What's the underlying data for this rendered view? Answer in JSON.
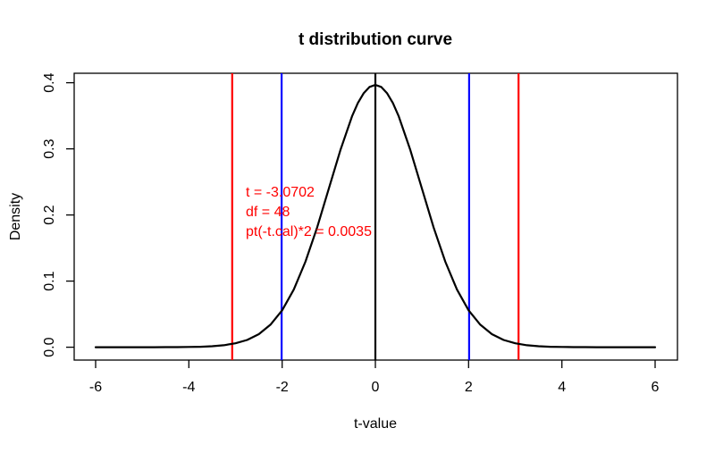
{
  "chart_data": {
    "type": "line",
    "title": "t distribution curve",
    "xlabel": "t-value",
    "ylabel": "Density",
    "xlim": [
      -6.48,
      6.48
    ],
    "ylim": [
      -0.016,
      0.413
    ],
    "grid": false,
    "legend": "none",
    "x_ticks": [
      -6,
      -4,
      -2,
      0,
      2,
      4,
      6
    ],
    "x_tick_labels": [
      "-6",
      "-4",
      "-2",
      "0",
      "2",
      "4",
      "6"
    ],
    "y_ticks": [
      0.0,
      0.1,
      0.2,
      0.3,
      0.4
    ],
    "y_tick_labels": [
      "0.0",
      "0.1",
      "0.2",
      "0.3",
      "0.4"
    ],
    "series": [
      {
        "name": "t-density-df-48",
        "color": "#000000",
        "points": [
          [
            -6,
            0
          ],
          [
            -5.75,
            0
          ],
          [
            -5.5,
            0
          ],
          [
            -5.25,
            1e-05
          ],
          [
            -5,
            1e-05
          ],
          [
            -4.75,
            3e-05
          ],
          [
            -4.5,
            7e-05
          ],
          [
            -4.25,
            0.00016
          ],
          [
            -4,
            0.00034
          ],
          [
            -3.75,
            0.00073
          ],
          [
            -3.5,
            0.00151
          ],
          [
            -3.25,
            0.00304
          ],
          [
            -3,
            0.00589
          ],
          [
            -2.75,
            0.01101
          ],
          [
            -2.5,
            0.01977
          ],
          [
            -2.25,
            0.03402
          ],
          [
            -2,
            0.05583
          ],
          [
            -1.75,
            0.08717
          ],
          [
            -1.5,
            0.12917
          ],
          [
            -1.25,
            0.18101
          ],
          [
            -1,
            0.23943
          ],
          [
            -0.75,
            0.29827
          ],
          [
            -0.5,
            0.34938
          ],
          [
            -0.375,
            0.36934
          ],
          [
            -0.25,
            0.3843
          ],
          [
            -0.125,
            0.39364
          ],
          [
            0,
            0.39679
          ],
          [
            0.125,
            0.39364
          ],
          [
            0.25,
            0.3843
          ],
          [
            0.375,
            0.36934
          ],
          [
            0.5,
            0.34938
          ],
          [
            0.75,
            0.29827
          ],
          [
            1,
            0.23943
          ],
          [
            1.25,
            0.18101
          ],
          [
            1.5,
            0.12917
          ],
          [
            1.75,
            0.08717
          ],
          [
            2,
            0.05583
          ],
          [
            2.25,
            0.03402
          ],
          [
            2.5,
            0.01977
          ],
          [
            2.75,
            0.01101
          ],
          [
            3,
            0.00589
          ],
          [
            3.25,
            0.00304
          ],
          [
            3.5,
            0.00151
          ],
          [
            3.75,
            0.00073
          ],
          [
            4,
            0.00034
          ],
          [
            4.25,
            0.00016
          ],
          [
            4.5,
            7e-05
          ],
          [
            4.75,
            3e-05
          ],
          [
            5,
            1e-05
          ],
          [
            5.25,
            1e-05
          ],
          [
            5.5,
            0
          ],
          [
            5.75,
            0
          ],
          [
            6,
            0
          ]
        ]
      }
    ],
    "vlines": [
      {
        "name": "observed-t-left",
        "x": -3.0702,
        "color": "#ff0000"
      },
      {
        "name": "critical-t-left",
        "x": -2.0106,
        "color": "#0000ff"
      },
      {
        "name": "center-zero",
        "x": 0,
        "color": "#000000"
      },
      {
        "name": "critical-t-right",
        "x": 2.0106,
        "color": "#0000ff"
      },
      {
        "name": "observed-t-right",
        "x": 3.0702,
        "color": "#ff0000"
      }
    ],
    "annotation": {
      "color": "#ff0000",
      "lines": [
        "t = -3.0702",
        "df = 48",
        "pt(-t.cal)*2 = 0.0035"
      ]
    },
    "colors": {
      "curve": "#000000",
      "observed_line": "#ff0000",
      "critical_line": "#0000ff",
      "background": "#ffffff"
    }
  }
}
